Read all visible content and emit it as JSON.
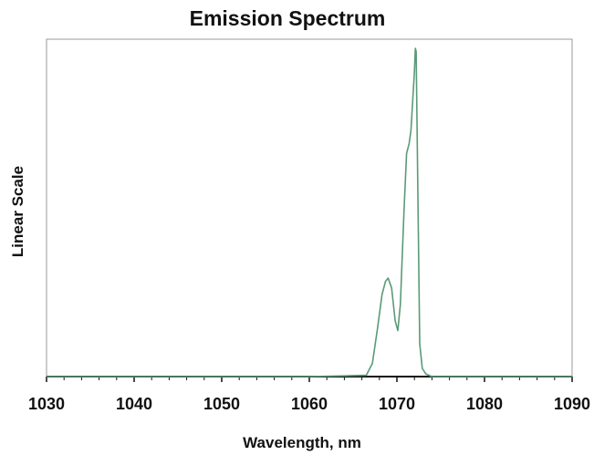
{
  "chart_data": {
    "type": "line",
    "title": "Emission Spectrum",
    "xlabel": "Wavelength, nm",
    "ylabel": "Linear Scale",
    "xlim": [
      1030,
      1090
    ],
    "ylim": [
      0,
      1.0
    ],
    "x_ticks": [
      1030,
      1040,
      1050,
      1060,
      1070,
      1080,
      1090
    ],
    "y_ticks_shown": false,
    "grid": false,
    "legend": "none",
    "series": [
      {
        "color": "#5a9a78",
        "x": [
          1030,
          1060,
          1066.5,
          1067.2,
          1067.8,
          1068.3,
          1068.7,
          1069.0,
          1069.4,
          1069.8,
          1070.1,
          1070.4,
          1070.8,
          1071.1,
          1071.4,
          1071.6,
          1071.8,
          1072.0,
          1072.1,
          1072.2,
          1072.4,
          1072.6,
          1072.9,
          1073.3,
          1074,
          1090
        ],
        "y": [
          0.0,
          0.0,
          0.004,
          0.04,
          0.15,
          0.25,
          0.29,
          0.3,
          0.27,
          0.17,
          0.14,
          0.22,
          0.5,
          0.68,
          0.71,
          0.75,
          0.84,
          0.93,
          1.0,
          0.99,
          0.55,
          0.1,
          0.025,
          0.008,
          0.0,
          0.0
        ]
      }
    ]
  }
}
